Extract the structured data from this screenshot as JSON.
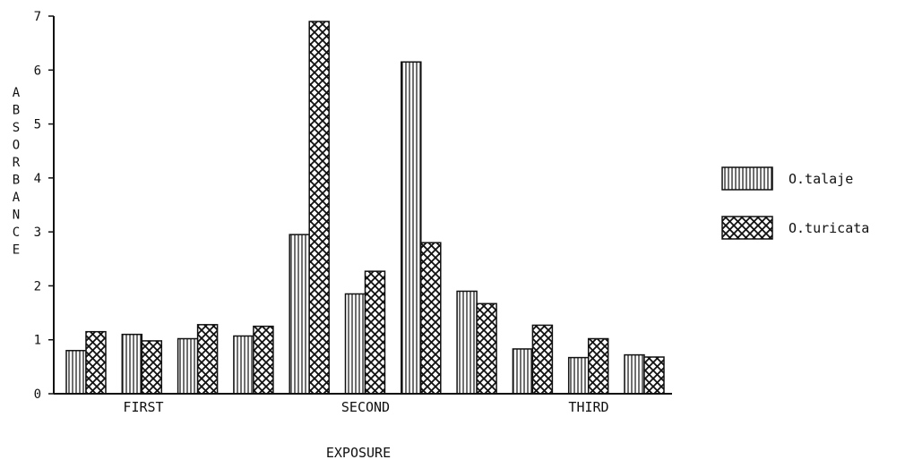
{
  "chart_data": {
    "type": "bar",
    "xlabel": "EXPOSURE",
    "ylabel": "ABSORBANCE",
    "ylim": [
      0,
      7
    ],
    "yticks": [
      "0",
      "1",
      "2",
      "3",
      "4",
      "5",
      "6",
      "7"
    ],
    "group_labels": [
      "FIRST",
      "SECOND",
      "THIRD"
    ],
    "legend_position": "right",
    "series": [
      {
        "name": "O.talaje",
        "pattern": "vertical-stripes",
        "values": [
          0.8,
          1.1,
          1.02,
          1.07,
          2.95,
          1.85,
          6.15,
          1.9,
          0.83,
          0.67,
          0.72
        ]
      },
      {
        "name": "O.turicata",
        "pattern": "crosshatch",
        "values": [
          1.15,
          0.98,
          1.28,
          1.25,
          6.9,
          2.27,
          2.8,
          1.67,
          1.27,
          1.02,
          0.68
        ]
      }
    ],
    "colors": {
      "ink": "#111111",
      "background": "#ffffff"
    }
  }
}
